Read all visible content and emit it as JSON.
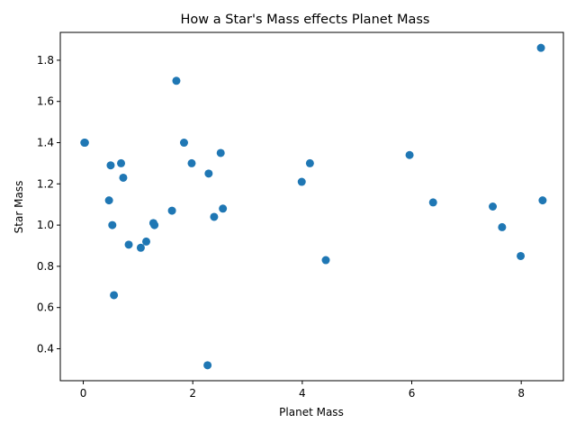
{
  "chart_data": {
    "type": "scatter",
    "title": "How a Star's Mass effects Planet Mass",
    "xlabel": "Planet Mass",
    "ylabel": "Star Mass",
    "xlim": [
      -0.42,
      8.77
    ],
    "ylim": [
      0.245,
      1.935
    ],
    "x_ticks": [
      0,
      2,
      4,
      6,
      8
    ],
    "x_tick_labels": [
      "0",
      "2",
      "4",
      "6",
      "8"
    ],
    "y_ticks": [
      0.4,
      0.6,
      0.8,
      1.0,
      1.2,
      1.4,
      1.6,
      1.8
    ],
    "y_tick_labels": [
      "0.4",
      "0.6",
      "0.8",
      "1.0",
      "1.2",
      "1.4",
      "1.6",
      "1.8"
    ],
    "grid": false,
    "marker_color": "#1f77b4",
    "series": [
      {
        "points": [
          [
            0.02,
            1.4
          ],
          [
            0.03,
            1.4
          ],
          [
            0.47,
            1.12
          ],
          [
            0.5,
            1.29
          ],
          [
            0.53,
            1.0
          ],
          [
            0.56,
            0.66
          ],
          [
            0.69,
            1.3
          ],
          [
            0.73,
            1.23
          ],
          [
            0.83,
            0.905
          ],
          [
            1.05,
            0.89
          ],
          [
            1.15,
            0.92
          ],
          [
            1.28,
            1.01
          ],
          [
            1.3,
            1.0
          ],
          [
            1.62,
            1.07
          ],
          [
            1.7,
            1.7
          ],
          [
            1.84,
            1.4
          ],
          [
            1.98,
            1.3
          ],
          [
            2.27,
            0.32
          ],
          [
            2.29,
            1.25
          ],
          [
            2.39,
            1.04
          ],
          [
            2.51,
            1.35
          ],
          [
            2.55,
            1.08
          ],
          [
            3.99,
            1.21
          ],
          [
            4.14,
            1.3
          ],
          [
            4.43,
            0.83
          ],
          [
            5.96,
            1.34
          ],
          [
            6.39,
            1.11
          ],
          [
            7.48,
            1.09
          ],
          [
            7.65,
            0.99
          ],
          [
            7.99,
            0.85
          ],
          [
            8.36,
            1.86
          ],
          [
            8.39,
            1.12
          ]
        ]
      }
    ]
  }
}
